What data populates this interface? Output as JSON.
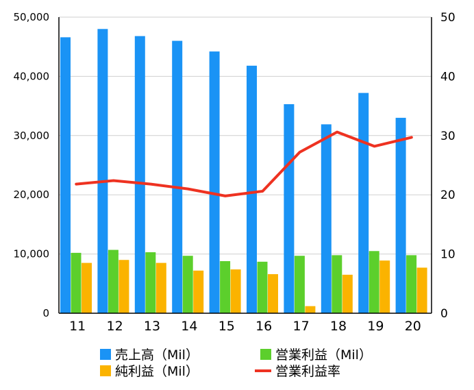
{
  "chart_data": {
    "type": "bar",
    "categories": [
      "11",
      "12",
      "13",
      "14",
      "15",
      "16",
      "17",
      "18",
      "19",
      "20"
    ],
    "series": [
      {
        "name": "売上高（Mil）",
        "type": "bar",
        "axis": "left",
        "color": "#1a93f5",
        "values": [
          46600,
          48000,
          46800,
          46000,
          44200,
          41800,
          35300,
          31900,
          37200,
          33000
        ]
      },
      {
        "name": "営業利益（Mil）",
        "type": "bar",
        "axis": "left",
        "color": "#5ccf2c",
        "values": [
          10200,
          10700,
          10300,
          9700,
          8800,
          8700,
          9700,
          9800,
          10500,
          9800
        ]
      },
      {
        "name": "純利益（Mil）",
        "type": "bar",
        "axis": "left",
        "color": "#fbb300",
        "values": [
          8500,
          9000,
          8500,
          7200,
          7400,
          6600,
          1200,
          6500,
          8900,
          7700
        ]
      },
      {
        "name": "営業利益率",
        "type": "line",
        "axis": "right",
        "color": "#ee3221",
        "values": [
          21.8,
          22.4,
          21.8,
          21.0,
          19.8,
          20.6,
          27.2,
          30.6,
          28.2,
          29.7
        ]
      }
    ],
    "y_left": {
      "min": 0,
      "max": 50000,
      "ticks": [
        "0",
        "10,000",
        "20,000",
        "30,000",
        "40,000",
        "50,000"
      ]
    },
    "y_right": {
      "min": 0,
      "max": 50,
      "ticks": [
        "0",
        "10",
        "20",
        "30",
        "40",
        "50"
      ]
    },
    "grid": "horizontal",
    "legend": "bottom"
  }
}
